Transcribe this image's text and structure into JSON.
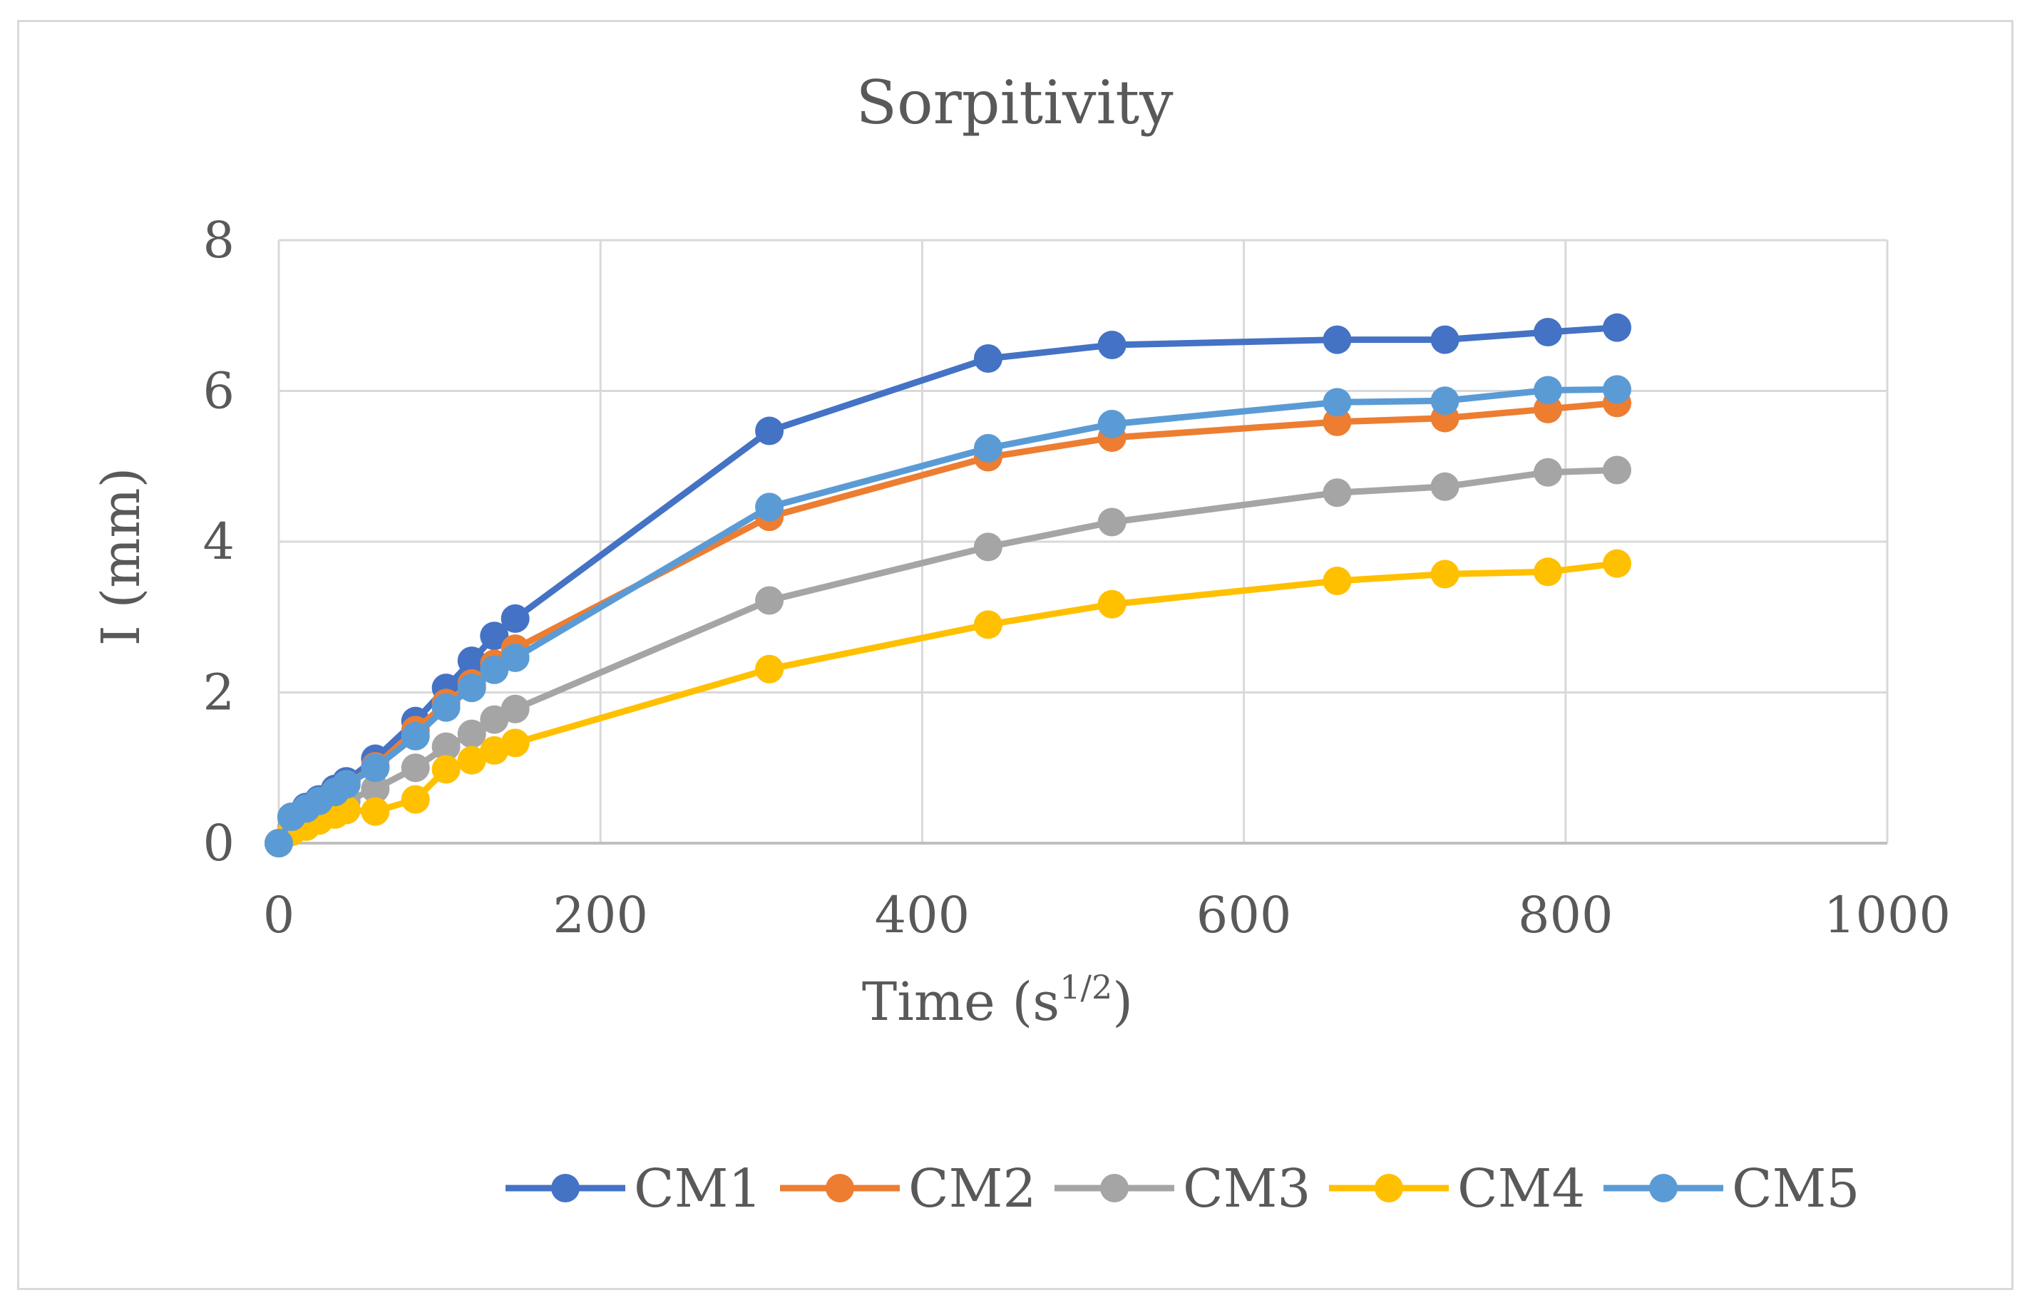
{
  "chart_data": {
    "type": "line",
    "title": "Sorpitivity",
    "xlabel": "Time (s",
    "xlabel_superscript": "1/2",
    "xlabel_suffix": ")",
    "ylabel": "I (mm)",
    "xlim": [
      0,
      1000
    ],
    "ylim": [
      0,
      8
    ],
    "x_ticks": [
      0,
      200,
      400,
      600,
      800,
      1000
    ],
    "x_tick_labels": [
      "0",
      "200",
      "400",
      "600",
      "800",
      "1000"
    ],
    "y_ticks": [
      0,
      2,
      4,
      6,
      8
    ],
    "y_tick_labels": [
      "0",
      "2",
      "4",
      "6",
      "8"
    ],
    "grid": true,
    "legend_position": "bottom",
    "x": [
      0,
      8,
      17,
      25,
      35,
      42,
      60,
      85,
      104,
      120,
      134,
      147,
      305,
      441,
      518,
      658,
      725,
      789,
      832
    ],
    "series": [
      {
        "name": "CM1",
        "color": "#4472C4",
        "values": [
          0,
          0.35,
          0.48,
          0.58,
          0.72,
          0.82,
          1.12,
          1.62,
          2.06,
          2.42,
          2.75,
          2.98,
          5.47,
          6.43,
          6.61,
          6.68,
          6.68,
          6.78,
          6.84
        ]
      },
      {
        "name": "CM2",
        "color": "#ED7D31",
        "values": [
          0,
          0.33,
          0.45,
          0.55,
          0.68,
          0.78,
          1.02,
          1.5,
          1.86,
          2.12,
          2.38,
          2.58,
          4.33,
          5.12,
          5.38,
          5.59,
          5.64,
          5.76,
          5.84
        ]
      },
      {
        "name": "CM3",
        "color": "#A5A5A5",
        "values": [
          0,
          0.22,
          0.32,
          0.4,
          0.5,
          0.56,
          0.72,
          1.0,
          1.28,
          1.45,
          1.64,
          1.78,
          3.22,
          3.93,
          4.26,
          4.65,
          4.73,
          4.92,
          4.95
        ]
      },
      {
        "name": "CM4",
        "color": "#FFC000",
        "values": [
          0,
          0.15,
          0.22,
          0.3,
          0.38,
          0.44,
          0.42,
          0.58,
          0.98,
          1.1,
          1.23,
          1.33,
          2.31,
          2.9,
          3.17,
          3.48,
          3.57,
          3.6,
          3.71
        ]
      },
      {
        "name": "CM5",
        "color": "#5B9BD5",
        "values": [
          0,
          0.35,
          0.46,
          0.56,
          0.68,
          0.78,
          1.0,
          1.42,
          1.8,
          2.06,
          2.3,
          2.46,
          4.46,
          5.24,
          5.56,
          5.85,
          5.87,
          6.01,
          6.02
        ]
      }
    ]
  }
}
